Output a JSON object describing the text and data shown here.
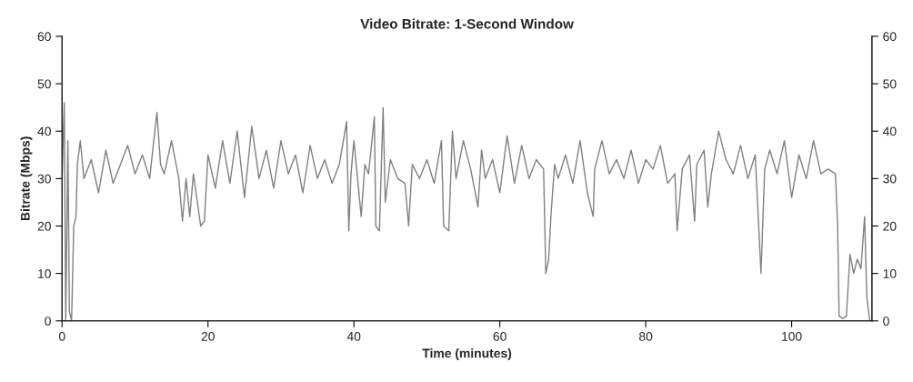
{
  "chart_data": {
    "type": "line",
    "title": "Video Bitrate: 1-Second Window",
    "xlabel": "Time (minutes)",
    "ylabel": "Bitrate (Mbps)",
    "x": [
      0,
      0.3,
      0.5,
      0.8,
      1,
      1.3,
      1.6,
      1.9,
      2.1,
      2.5,
      3,
      4,
      5,
      6,
      7,
      8,
      9,
      10,
      11,
      12,
      13,
      13.5,
      14,
      15,
      16,
      16.5,
      17,
      17.5,
      18,
      19,
      19.5,
      20,
      21,
      22,
      23,
      24,
      25,
      26,
      27,
      28,
      29,
      30,
      31,
      32,
      33,
      34,
      35,
      36,
      37,
      38,
      39,
      39.3,
      39.6,
      40,
      41,
      41.5,
      42,
      42.8,
      43,
      43.5,
      44,
      44.3,
      45,
      46,
      47,
      47.5,
      48,
      49,
      50,
      51,
      52,
      52.3,
      53,
      53.5,
      54,
      55,
      56,
      57,
      57.5,
      58,
      59,
      60,
      61,
      62,
      63,
      64,
      65,
      66,
      66.3,
      66.7,
      67,
      67.5,
      68,
      69,
      70,
      71,
      72,
      72.8,
      73,
      74,
      75,
      76,
      77,
      78,
      79,
      80,
      81,
      82,
      83,
      84,
      84.3,
      85,
      86,
      86.7,
      87,
      88,
      88.5,
      89,
      90,
      91,
      92,
      93,
      94,
      95,
      95.8,
      96.3,
      97,
      98,
      99,
      100,
      101,
      102,
      103,
      104,
      105,
      106,
      106.3,
      106.5,
      107,
      107.5,
      108,
      108.5,
      109,
      109.5,
      110,
      110.3,
      110.7
    ],
    "series": [
      {
        "color": "#808080",
        "values": [
          30,
          46,
          0,
          38,
          2,
          0,
          20,
          22,
          33,
          38,
          30,
          34,
          27,
          36,
          29,
          33,
          37,
          31,
          35,
          30,
          44,
          33,
          31,
          38,
          30,
          21,
          30,
          22,
          31,
          20,
          21,
          35,
          28,
          38,
          29,
          40,
          26,
          41,
          30,
          36,
          28,
          38,
          31,
          35,
          27,
          37,
          30,
          34,
          29,
          33,
          42,
          19,
          31,
          38,
          22,
          33,
          31,
          43,
          20,
          19,
          45,
          25,
          34,
          30,
          29,
          20,
          33,
          30,
          34,
          29,
          38,
          20,
          19,
          40,
          30,
          38,
          32,
          24,
          36,
          30,
          34,
          27,
          39,
          29,
          37,
          30,
          34,
          32,
          10,
          13,
          22,
          33,
          30,
          35,
          29,
          38,
          27,
          22,
          32,
          38,
          31,
          34,
          30,
          36,
          29,
          34,
          32,
          37,
          29,
          31,
          19,
          32,
          35,
          21,
          33,
          36,
          24,
          31,
          40,
          34,
          31,
          37,
          30,
          35,
          10,
          32,
          36,
          31,
          38,
          26,
          35,
          30,
          38,
          31,
          32,
          31,
          20,
          1,
          0.5,
          1,
          14,
          10,
          13,
          11,
          22,
          5,
          0
        ]
      }
    ],
    "xlim": [
      0,
      111
    ],
    "xticks": [
      0,
      20,
      40,
      60,
      80,
      100
    ],
    "ylim": [
      0,
      60
    ],
    "yticks": [
      0,
      10,
      20,
      30,
      40,
      50,
      60
    ],
    "y2lim": [
      0,
      60
    ],
    "y2ticks": [
      0,
      10,
      20,
      30,
      40,
      50,
      60
    ],
    "grid": false
  }
}
